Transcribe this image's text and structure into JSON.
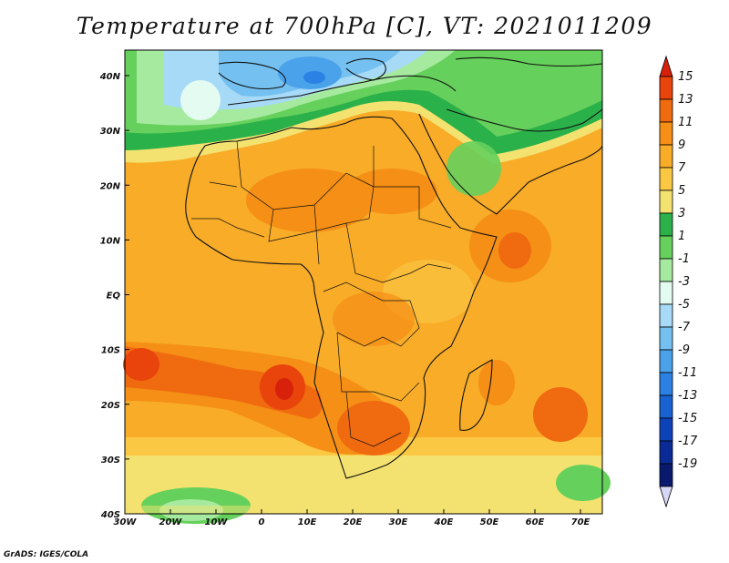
{
  "title": "Temperature at 700hPa [C], VT: 2021011209",
  "credit": "GrADS: IGES/COLA",
  "map": {
    "lon_ticks": [
      "30W",
      "20W",
      "10W",
      "0",
      "10E",
      "20E",
      "30E",
      "40E",
      "50E",
      "60E",
      "70E"
    ],
    "lat_ticks": [
      "40N",
      "30N",
      "20N",
      "10N",
      "EQ",
      "10S",
      "20S",
      "30S",
      "40S"
    ]
  },
  "colorbar": {
    "labels": [
      "15",
      "13",
      "11",
      "9",
      "7",
      "5",
      "3",
      "1",
      "-1",
      "-3",
      "-5",
      "-7",
      "-9",
      "-11",
      "-13",
      "-15",
      "-17",
      "-19"
    ],
    "colors": [
      "#d8210b",
      "#e8440b",
      "#f06a10",
      "#f58f15",
      "#f8ac28",
      "#fbc844",
      "#f4e270",
      "#2bb14a",
      "#66d05c",
      "#a6eaa0",
      "#e4fbf2",
      "#a6daf6",
      "#74c0f0",
      "#4aa2ea",
      "#2b82e4",
      "#1862d2",
      "#0d43b8",
      "#0a2a95",
      "#091a6e",
      "#d6d6f6"
    ]
  }
}
